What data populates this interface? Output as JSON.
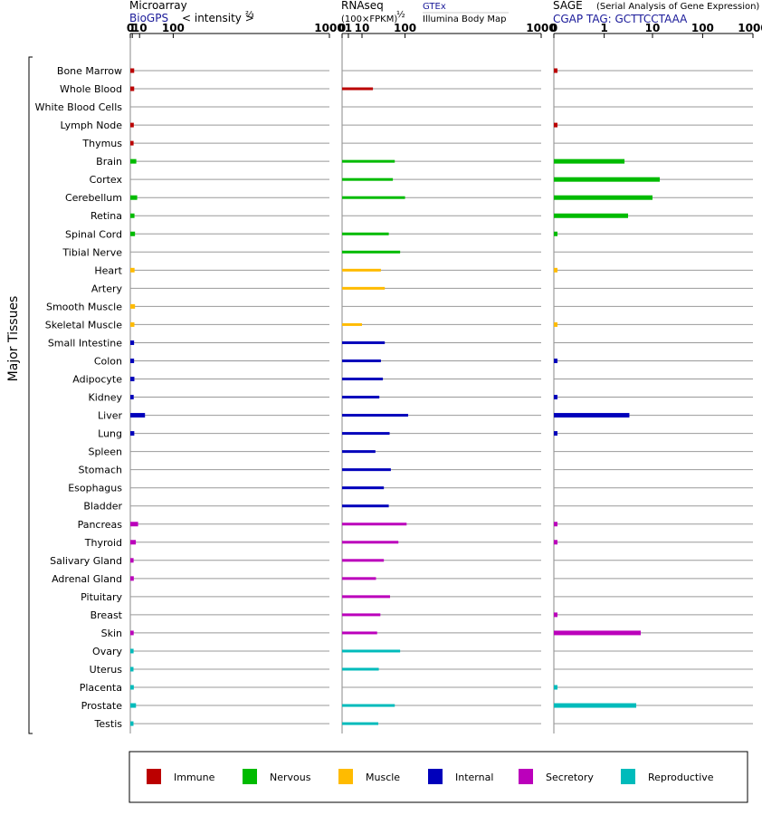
{
  "header": {
    "microarray_title": "Microarray",
    "microarray_sub": "BioGPS",
    "microarray_intensity": "< intensity >",
    "microarray_exp": "⅔",
    "rnaseq_title": "RNAseq",
    "rnaseq_sub": "(100×FPKM)",
    "rnaseq_exp": "½",
    "rnaseq_src1": "GTEx",
    "rnaseq_src2": "Illumina Body Map",
    "sage_title": "SAGE",
    "sage_desc": "(Serial Analysis of Gene Expression)",
    "sage_tag": "CGAP TAG: GCTTCCTAAA"
  },
  "side_label": "Major Tissues",
  "colors": {
    "Immune": "#bb0000",
    "Nervous": "#00bb00",
    "Muscle": "#ffbb00",
    "Internal": "#0000bb",
    "Secretory": "#bb00bb",
    "Reproductive": "#00bbbb"
  },
  "chart_data": {
    "type": "bar",
    "axis_ticks": [
      "0",
      "1",
      "10",
      "100",
      "1000"
    ],
    "axis_range": [
      0,
      1000
    ],
    "legend": [
      "Immune",
      "Nervous",
      "Muscle",
      "Internal",
      "Secretory",
      "Reproductive"
    ],
    "categories": [
      "Bone Marrow",
      "Whole Blood",
      "White Blood Cells",
      "Lymph Node",
      "Thymus",
      "Brain",
      "Cortex",
      "Cerebellum",
      "Retina",
      "Spinal Cord",
      "Tibial Nerve",
      "Heart",
      "Artery",
      "Smooth Muscle",
      "Skeletal Muscle",
      "Small Intestine",
      "Colon",
      "Adipocyte",
      "Kidney",
      "Liver",
      "Lung",
      "Spleen",
      "Stomach",
      "Esophagus",
      "Bladder",
      "Pancreas",
      "Thyroid",
      "Salivary Gland",
      "Adrenal Gland",
      "Pituitary",
      "Breast",
      "Skin",
      "Ovary",
      "Uterus",
      "Placenta",
      "Prostate",
      "Testis"
    ],
    "groups": [
      "Immune",
      "Immune",
      "Immune",
      "Immune",
      "Immune",
      "Nervous",
      "Nervous",
      "Nervous",
      "Nervous",
      "Nervous",
      "Nervous",
      "Muscle",
      "Muscle",
      "Muscle",
      "Muscle",
      "Internal",
      "Internal",
      "Internal",
      "Internal",
      "Internal",
      "Internal",
      "Internal",
      "Internal",
      "Internal",
      "Internal",
      "Secretory",
      "Secretory",
      "Secretory",
      "Secretory",
      "Secretory",
      "Secretory",
      "Secretory",
      "Reproductive",
      "Reproductive",
      "Reproductive",
      "Reproductive",
      "Reproductive"
    ],
    "series": [
      {
        "name": "Microarray",
        "values": [
          2.7,
          2.7,
          null,
          2.3,
          2.1,
          5.2,
          null,
          6.4,
          3.0,
          3.6,
          null,
          3.1,
          null,
          3.6,
          2.9,
          2.6,
          2.6,
          2.9,
          2.2,
          20,
          2.8,
          null,
          null,
          null,
          null,
          7.7,
          4.6,
          2.1,
          2.3,
          null,
          null,
          2.2,
          2.1,
          2.0,
          2.3,
          4.8,
          2.0
        ]
      },
      {
        "name": "RNAseq",
        "values": [
          null,
          24,
          null,
          null,
          null,
          70,
          65,
          100,
          null,
          55,
          85,
          38,
          46,
          null,
          10,
          46,
          38,
          42,
          35,
          110,
          57,
          28,
          60,
          44,
          55,
          105,
          80,
          44,
          29,
          58,
          37,
          31,
          85,
          34,
          null,
          70,
          33
        ]
      },
      {
        "name": "SAGE",
        "values": [
          0.02,
          null,
          null,
          0.02,
          null,
          2.7,
          14.0,
          10.0,
          3.2,
          0.02,
          null,
          0.02,
          null,
          null,
          0.02,
          null,
          0.02,
          null,
          0.02,
          3.4,
          0.02,
          null,
          null,
          null,
          null,
          0.02,
          0.02,
          null,
          null,
          null,
          0.02,
          5.8,
          null,
          null,
          0.02,
          4.7,
          null
        ]
      }
    ]
  }
}
